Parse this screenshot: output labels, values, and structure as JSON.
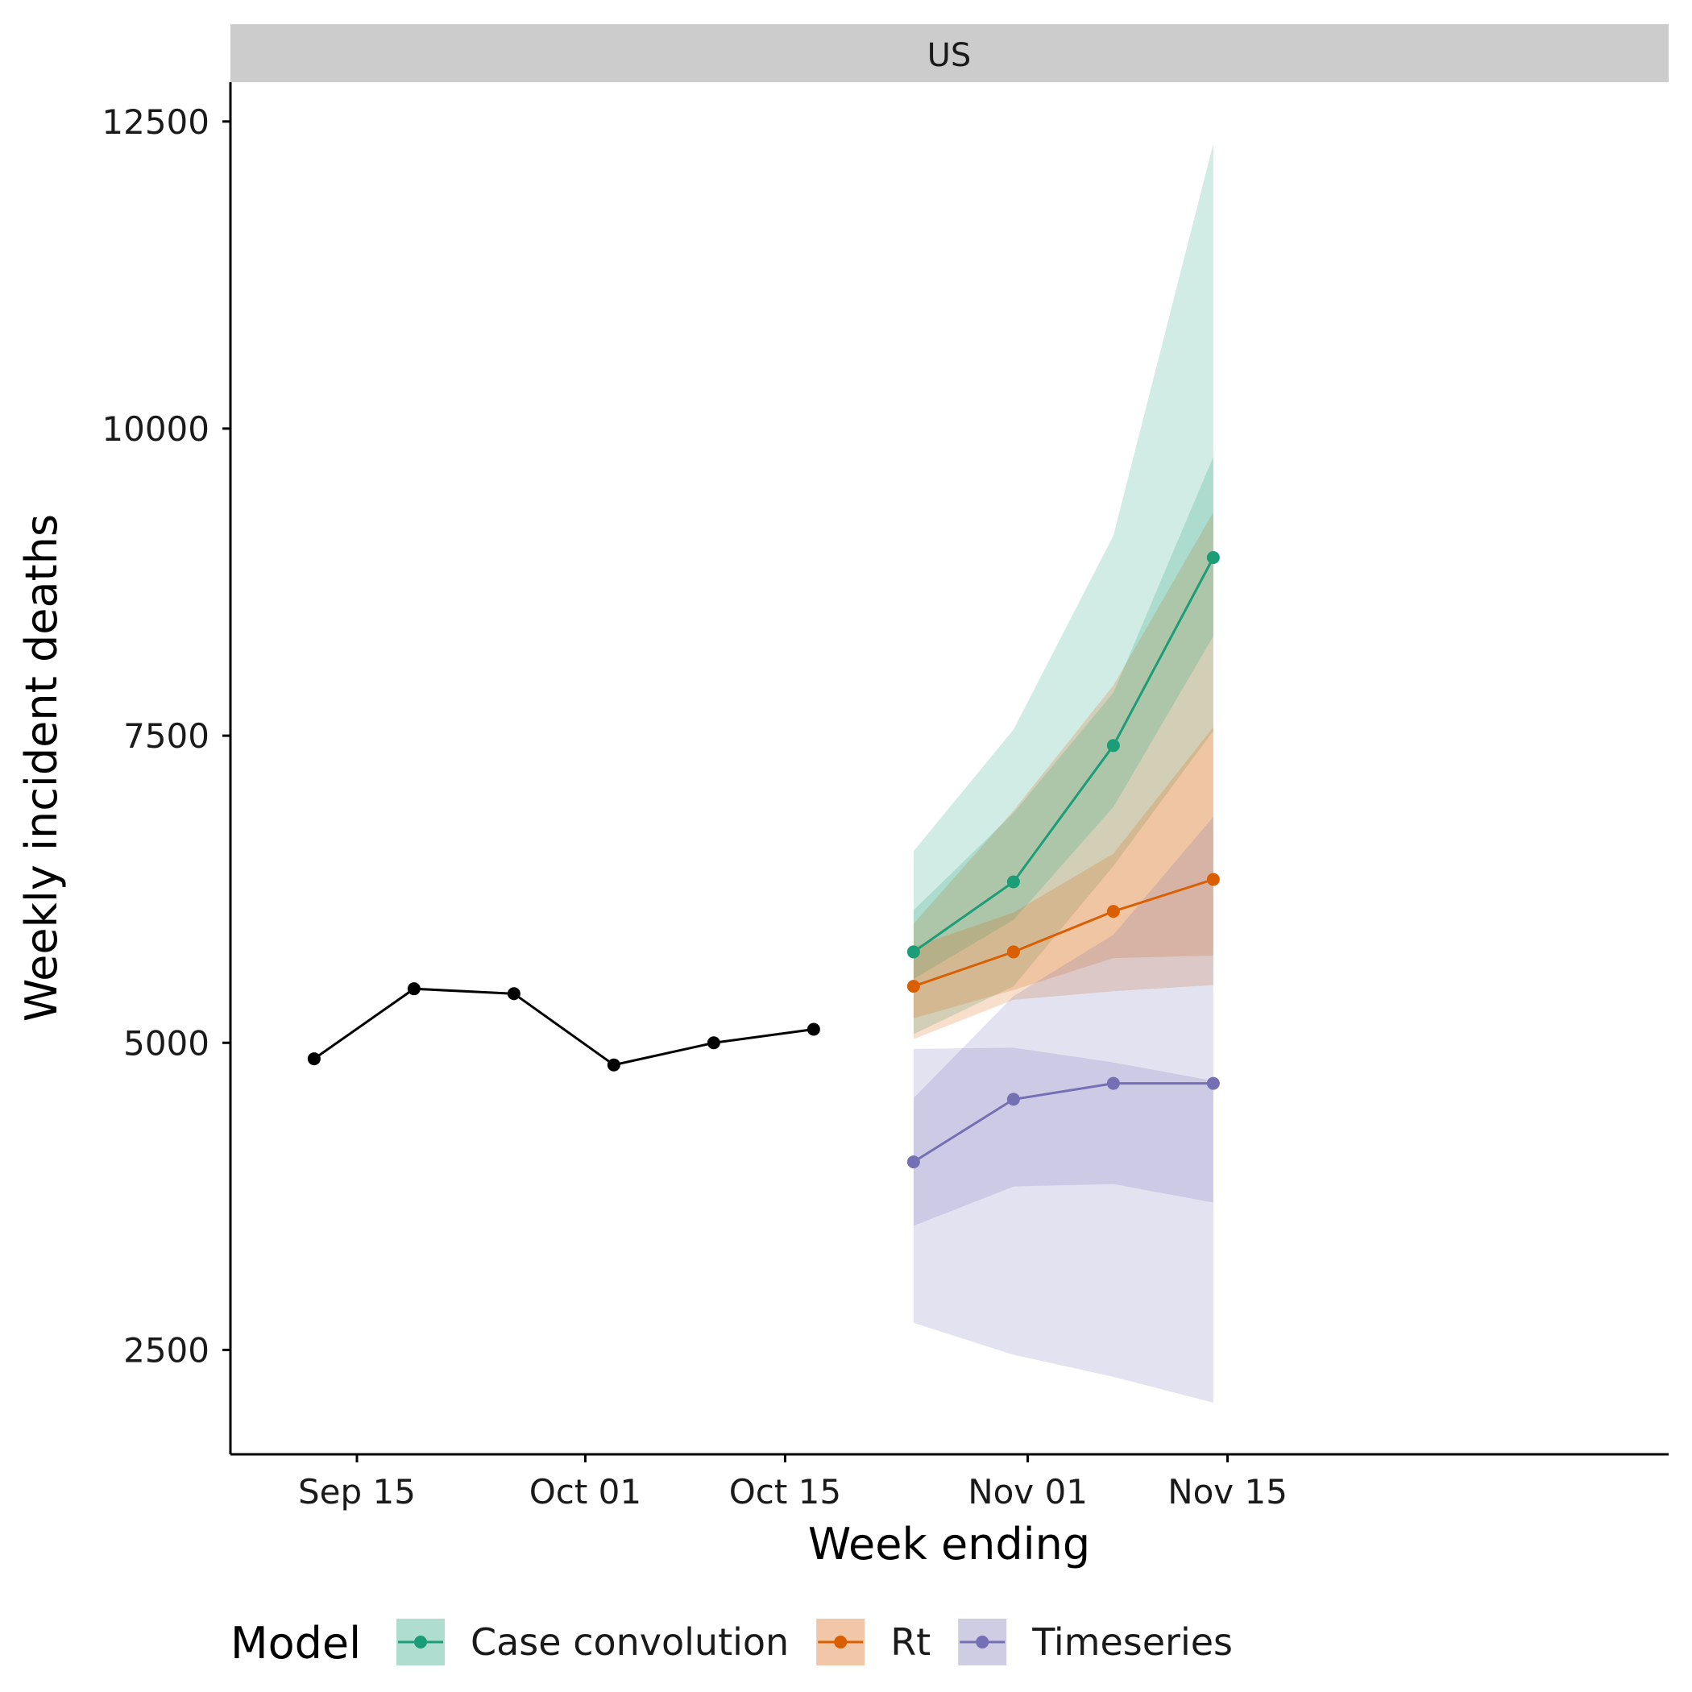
{
  "chart_data": {
    "type": "line",
    "facet": "US",
    "xlabel": "Week ending",
    "ylabel": "Weekly incident deaths",
    "x_ticks": [
      "Sep 15",
      "Oct 01",
      "Oct 15",
      "Nov 01",
      "Nov 15"
    ],
    "y_ticks": [
      2500,
      5000,
      7500,
      10000,
      12500
    ],
    "ylim": [
      1650,
      12820
    ],
    "grid": false,
    "observed": {
      "color": "#000000",
      "points": [
        {
          "x": "2020-09-12",
          "y": 4870
        },
        {
          "x": "2020-09-19",
          "y": 5440
        },
        {
          "x": "2020-09-26",
          "y": 5400
        },
        {
          "x": "2020-10-03",
          "y": 4820
        },
        {
          "x": "2020-10-10",
          "y": 5000
        },
        {
          "x": "2020-10-17",
          "y": 5110
        }
      ]
    },
    "forecast_dates": [
      "2020-10-24",
      "2020-10-31",
      "2020-11-07",
      "2020-11-14"
    ],
    "legend": {
      "title": "Model",
      "position": "bottom"
    },
    "series": [
      {
        "name": "Case convolution",
        "color": "#1b9e77",
        "median": [
          5740,
          6310,
          7420,
          8950
        ],
        "inner": {
          "lower": [
            5520,
            6000,
            6920,
            8310
          ],
          "upper": [
            6080,
            6870,
            7850,
            9770
          ]
        },
        "outer": {
          "lower": [
            5070,
            5460,
            6440,
            7540
          ],
          "upper": [
            6560,
            7550,
            9130,
            12320
          ]
        }
      },
      {
        "name": "Rt",
        "color": "#d95f02",
        "median": [
          5460,
          5740,
          6070,
          6330
        ],
        "inner": {
          "lower": [
            5200,
            5430,
            5690,
            5710
          ],
          "upper": [
            5780,
            6060,
            6540,
            7570
          ]
        },
        "outer": {
          "lower": [
            5030,
            5350,
            5420,
            5470
          ],
          "upper": [
            5970,
            6890,
            7910,
            9320
          ]
        }
      },
      {
        "name": "Timeseries",
        "color": "#7570b3",
        "median": [
          4030,
          4540,
          4670,
          4670
        ],
        "inner": {
          "lower": [
            3510,
            3830,
            3850,
            3700
          ],
          "upper": [
            4550,
            5380,
            5880,
            6840
          ]
        },
        "outer": {
          "lower": [
            2720,
            2460,
            2280,
            2070
          ],
          "upper": [
            4950,
            4960,
            4840,
            4690
          ]
        }
      }
    ]
  }
}
